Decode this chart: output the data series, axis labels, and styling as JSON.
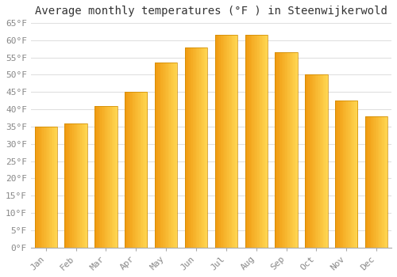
{
  "title": "Average monthly temperatures (°F ) in Steenwijkerwold",
  "months": [
    "Jan",
    "Feb",
    "Mar",
    "Apr",
    "May",
    "Jun",
    "Jul",
    "Aug",
    "Sep",
    "Oct",
    "Nov",
    "Dec"
  ],
  "values": [
    35,
    36,
    41,
    45,
    53.5,
    58,
    61.5,
    61.5,
    56.5,
    50,
    42.5,
    38
  ],
  "bar_color_left": "#F5A623",
  "bar_color_right": "#FFD966",
  "bar_color_mid": "#FFC72C",
  "background_color": "#FFFFFF",
  "grid_color": "#E0E0E0",
  "ylim": [
    0,
    65
  ],
  "yticks": [
    0,
    5,
    10,
    15,
    20,
    25,
    30,
    35,
    40,
    45,
    50,
    55,
    60,
    65
  ],
  "ytick_labels": [
    "0°F",
    "5°F",
    "10°F",
    "15°F",
    "20°F",
    "25°F",
    "30°F",
    "35°F",
    "40°F",
    "45°F",
    "50°F",
    "55°F",
    "60°F",
    "65°F"
  ],
  "tick_color": "#888888",
  "title_fontsize": 10,
  "tick_fontsize": 8,
  "bar_width": 0.75,
  "n_gradient_steps": 20
}
